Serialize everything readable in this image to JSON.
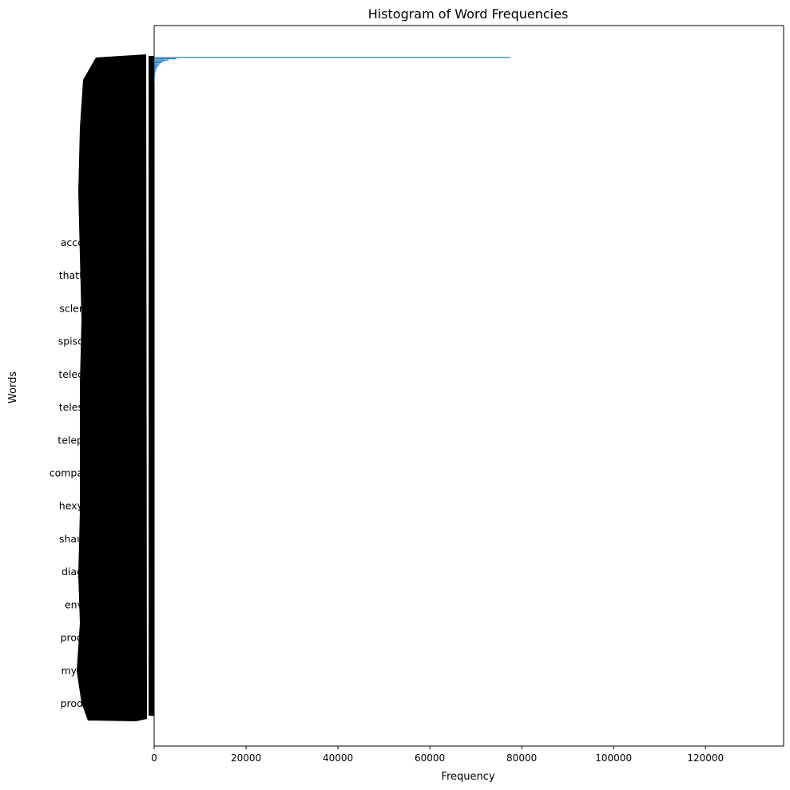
{
  "chart_data": {
    "type": "bar",
    "orientation": "horizontal",
    "title": "Histogram of Word Frequencies",
    "xlabel": "Frequency",
    "ylabel": "Words",
    "xlim": [
      0,
      137000
    ],
    "xticks": [
      0,
      20000,
      40000,
      60000,
      80000,
      100000,
      120000
    ],
    "xtick_labels": [
      "0",
      "20000",
      "40000",
      "60000",
      "80000",
      "100000",
      "120000"
    ],
    "bar_color": "#1f77b4",
    "grid": false,
    "legend": "none",
    "max_value": 77500,
    "distribution": "long-tail",
    "readable_word_labels": [
      "accc",
      "thatt",
      "scler",
      "spisc",
      "telec",
      "teles",
      "telep",
      "compa",
      "hexy",
      "shau",
      "diag",
      "env",
      "prod",
      "myp",
      "prod"
    ],
    "top_values": [
      77500,
      4800,
      3100,
      2200,
      1600,
      1300,
      1000,
      800,
      650,
      500,
      400,
      320,
      260,
      210,
      170,
      140,
      120,
      100,
      85,
      70
    ]
  }
}
